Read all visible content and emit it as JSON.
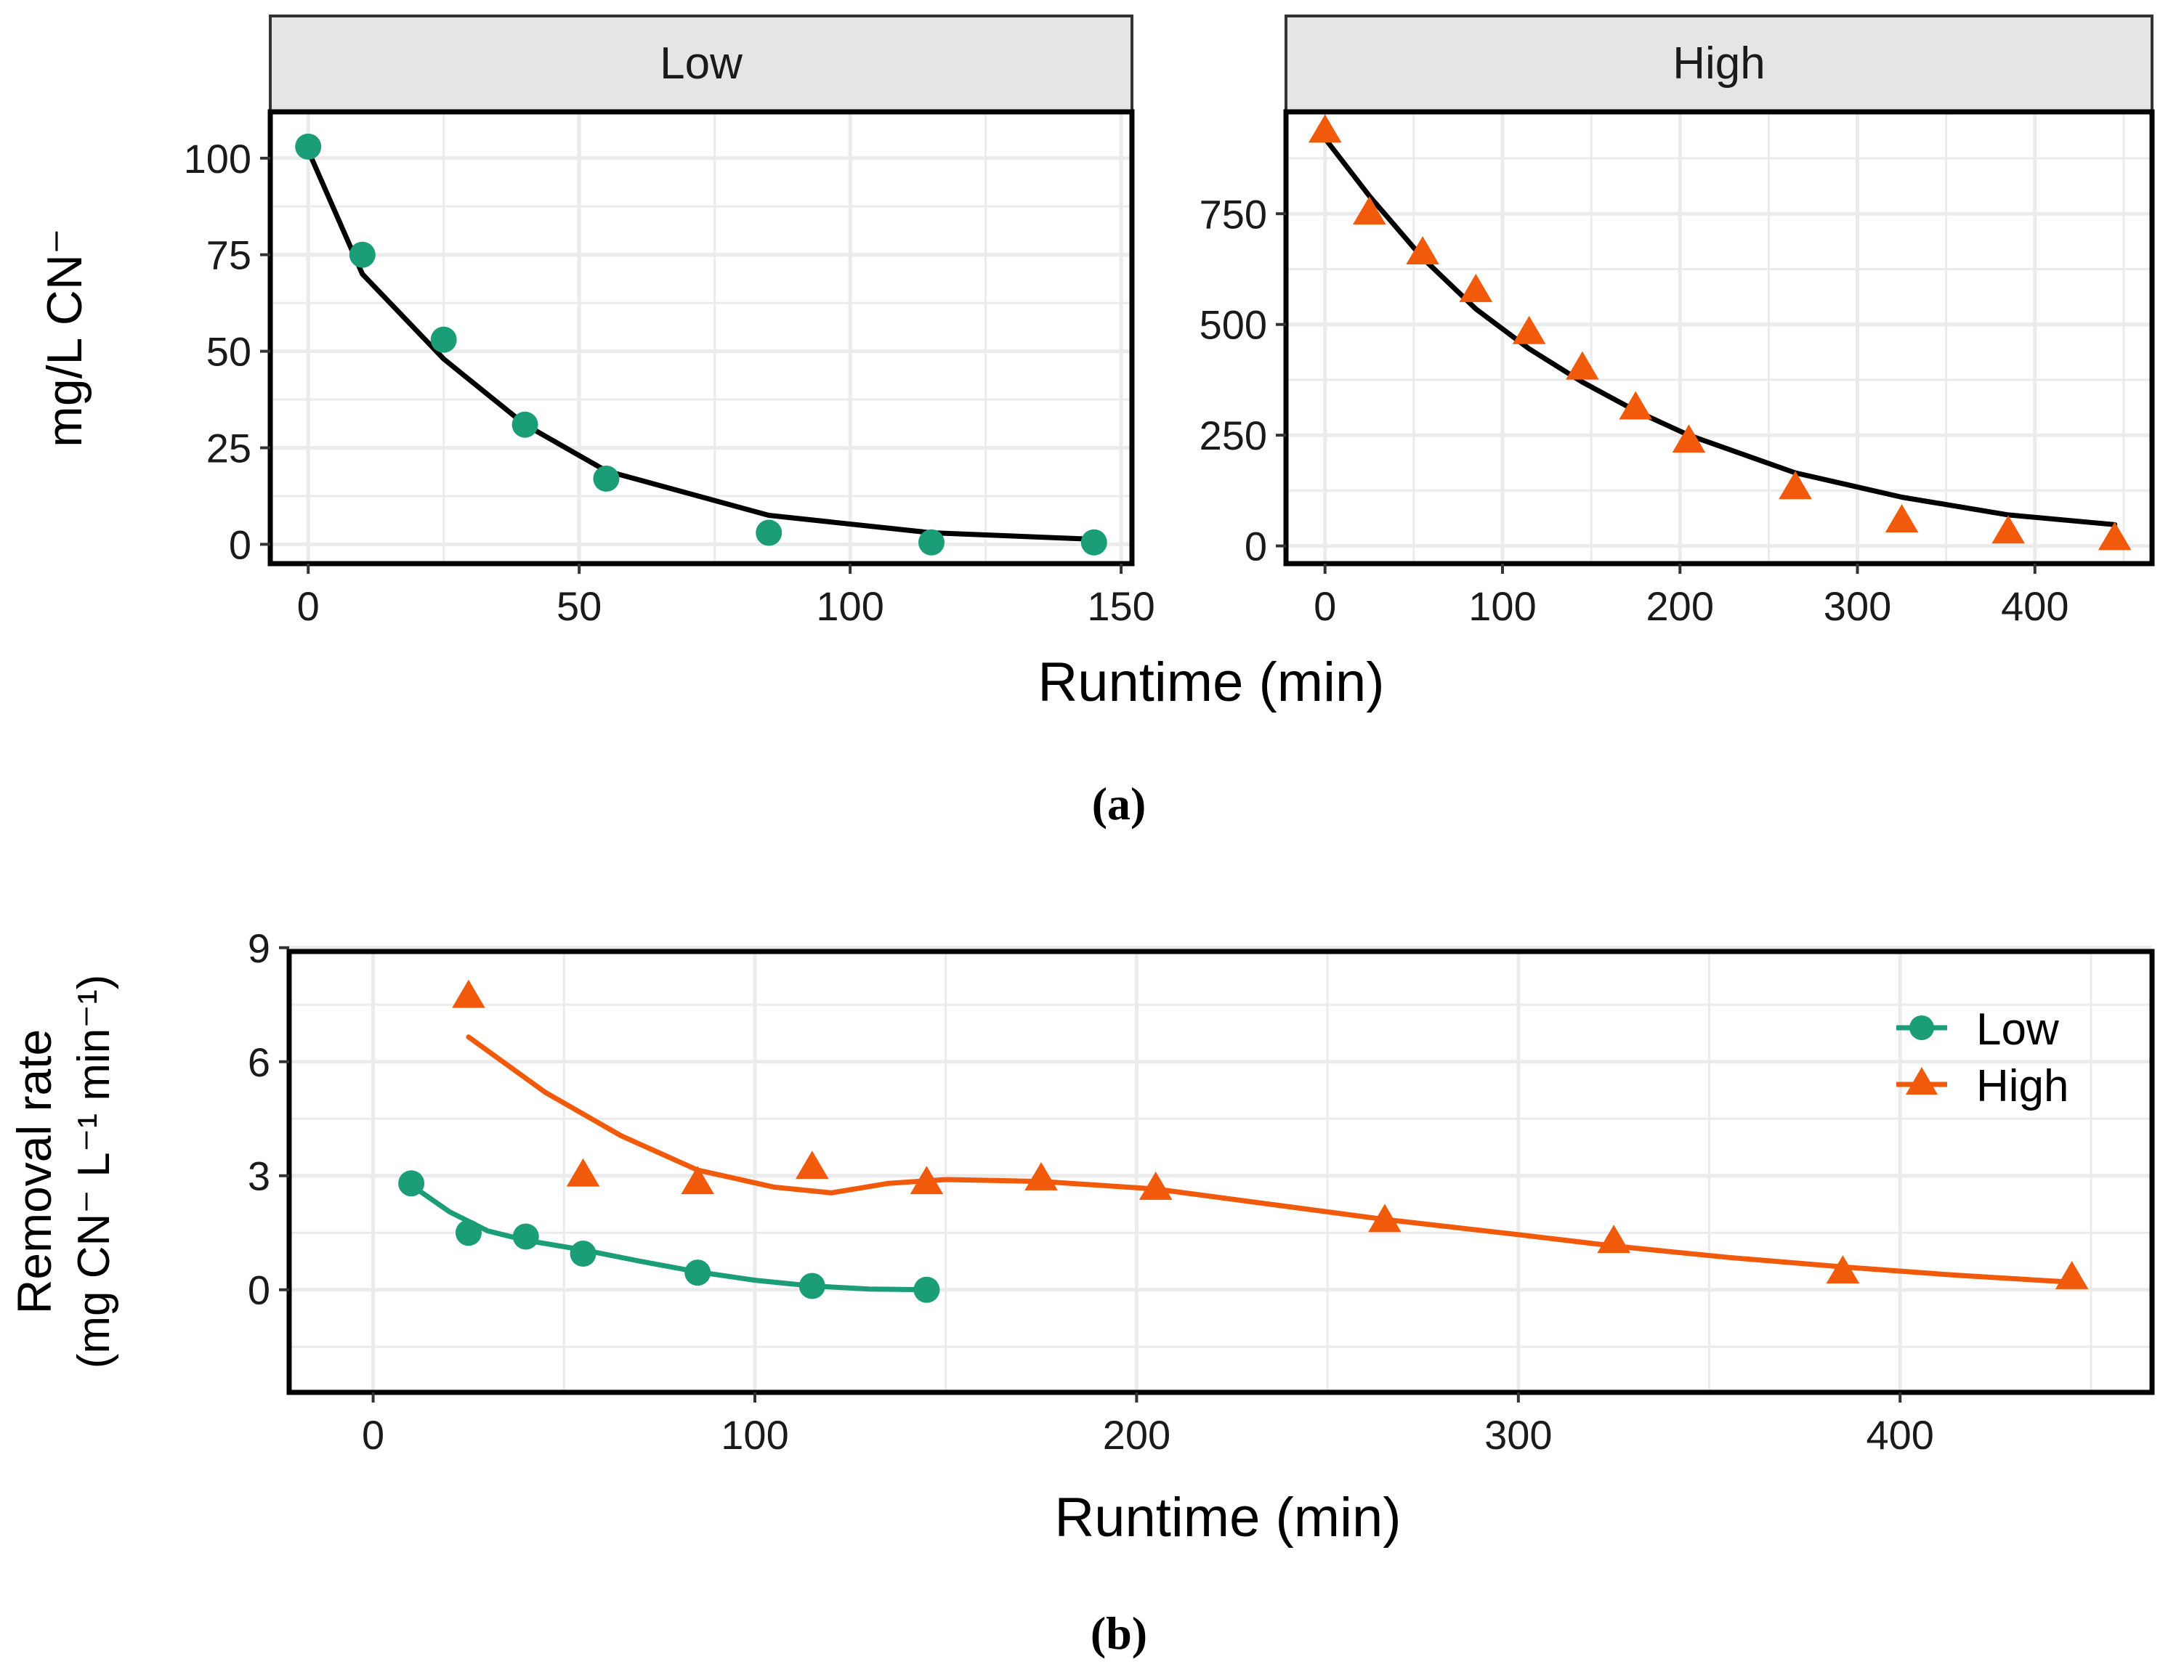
{
  "colors": {
    "low": "#1b9e77",
    "high": "#f05a0a",
    "fit_line": "#000000",
    "grid": "#ebebeb",
    "strip_bg": "#e5e5e5"
  },
  "panel_labels": {
    "a": "(a)",
    "b": "(b)"
  },
  "chart_data": [
    {
      "type": "scatter",
      "id": "a-low",
      "strip": "Low",
      "xlabel": "Runtime (min)",
      "ylabel": "mg/L CN⁻",
      "xlim": [
        -7,
        152
      ],
      "ylim": [
        -5,
        112
      ],
      "xticks": [
        0,
        50,
        100,
        150
      ],
      "yticks": [
        0,
        25,
        50,
        75,
        100
      ],
      "points": {
        "x": [
          0,
          10,
          25,
          40,
          55,
          85,
          115,
          145
        ],
        "y": [
          103,
          75,
          53,
          31,
          17,
          3,
          0.5,
          0.5
        ]
      },
      "fit": {
        "x": [
          0,
          10,
          25,
          40,
          55,
          85,
          115,
          145
        ],
        "y": [
          102,
          70,
          48,
          31,
          19,
          7.5,
          3,
          1.3
        ]
      },
      "marker": "circle",
      "series_color_key": "low"
    },
    {
      "type": "scatter",
      "id": "a-high",
      "strip": "High",
      "xlabel": "Runtime (min)",
      "xlim": [
        -22,
        466
      ],
      "ylim": [
        -40,
        980
      ],
      "xticks": [
        0,
        100,
        200,
        300,
        400
      ],
      "yticks": [
        0,
        250,
        500,
        750
      ],
      "points": {
        "x": [
          0,
          25,
          55,
          85,
          115,
          145,
          175,
          205,
          265,
          325,
          385,
          445
        ],
        "y": [
          935,
          750,
          660,
          575,
          480,
          400,
          310,
          235,
          130,
          55,
          30,
          15
        ]
      },
      "fit": {
        "x": [
          0,
          25,
          55,
          85,
          115,
          145,
          175,
          205,
          265,
          325,
          385,
          445
        ],
        "y": [
          920,
          790,
          650,
          535,
          445,
          370,
          305,
          250,
          165,
          110,
          70,
          48
        ]
      },
      "marker": "triangle",
      "series_color_key": "high"
    },
    {
      "type": "line",
      "id": "b",
      "xlabel": "Runtime (min)",
      "ylabel": [
        "Removal rate",
        "(mg CN⁻ L⁻¹ min⁻¹)"
      ],
      "xlim": [
        -22,
        466
      ],
      "ylim": [
        -2.7,
        8.9
      ],
      "xticks": [
        0,
        100,
        200,
        300,
        400
      ],
      "yticks": [
        0,
        3,
        6,
        9
      ],
      "legend": {
        "position": "top-right"
      },
      "series": [
        {
          "name": "Low",
          "marker": "circle",
          "color_key": "low",
          "points": {
            "x": [
              10,
              25,
              40,
              55,
              85,
              115,
              145
            ],
            "y": [
              2.8,
              1.5,
              1.4,
              0.95,
              0.45,
              0.1,
              0.0
            ]
          },
          "smooth": {
            "x": [
              10,
              20,
              30,
              40,
              55,
              70,
              85,
              100,
              115,
              130,
              145
            ],
            "y": [
              2.75,
              2.05,
              1.55,
              1.3,
              1.05,
              0.75,
              0.47,
              0.25,
              0.1,
              0.02,
              0.0
            ]
          }
        },
        {
          "name": "High",
          "marker": "triangle",
          "color_key": "high",
          "points": {
            "x": [
              25,
              55,
              85,
              115,
              145,
              175,
              205,
              265,
              325,
              385,
              445
            ],
            "y": [
              7.7,
              3.0,
              2.8,
              3.2,
              2.8,
              2.9,
              2.65,
              1.8,
              1.25,
              0.45,
              0.3
            ]
          },
          "smooth": {
            "x": [
              25,
              45,
              65,
              85,
              105,
              120,
              135,
              150,
              175,
              205,
              235,
              265,
              300,
              325,
              355,
              385,
              415,
              445
            ],
            "y": [
              6.65,
              5.2,
              4.05,
              3.15,
              2.7,
              2.55,
              2.8,
              2.9,
              2.85,
              2.65,
              2.25,
              1.85,
              1.45,
              1.15,
              0.85,
              0.6,
              0.38,
              0.2
            ]
          }
        }
      ]
    }
  ]
}
